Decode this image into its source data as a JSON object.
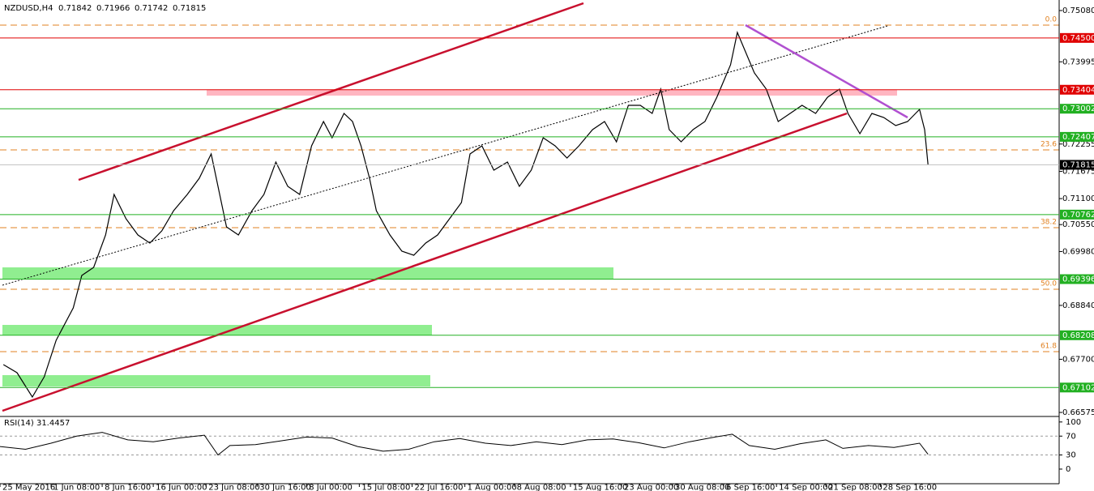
{
  "chart_data": {
    "type": "line",
    "title": "NZDUSD,H4",
    "header_values": [
      0.71842,
      0.71966,
      0.71742,
      0.71815
    ],
    "xlim": [
      0,
      622
    ],
    "xticks": [
      {
        "value": 0,
        "label": "25 May 2016"
      },
      {
        "value": 30,
        "label": "1 Jun 08:00"
      },
      {
        "value": 60,
        "label": "8 Jun 16:00"
      },
      {
        "value": 90,
        "label": "16 Jun 00:00"
      },
      {
        "value": 121,
        "label": "23 Jun 08:00"
      },
      {
        "value": 151,
        "label": "30 Jun 16:00"
      },
      {
        "value": 180,
        "label": "8 Jul 00:00"
      },
      {
        "value": 211,
        "label": "15 Jul 08:00"
      },
      {
        "value": 242,
        "label": "22 Jul 16:00"
      },
      {
        "value": 273,
        "label": "1 Aug 00:00"
      },
      {
        "value": 302,
        "label": "8 Aug 08:00"
      },
      {
        "value": 335,
        "label": "15 Aug 16:00"
      },
      {
        "value": 365,
        "label": "23 Aug 00:00"
      },
      {
        "value": 395,
        "label": "30 Aug 08:00"
      },
      {
        "value": 425,
        "label": "6 Sep 16:00"
      },
      {
        "value": 456,
        "label": "14 Sep 00:00"
      },
      {
        "value": 485,
        "label": "21 Sep 08:00"
      },
      {
        "value": 517,
        "label": "28 Sep 16:00"
      }
    ],
    "ylim": [
      0.66524,
      0.75303
    ],
    "yticks": [
      {
        "value": 0.7508,
        "label": "0.75080"
      },
      {
        "value": 0.73995,
        "label": "0.73995"
      },
      {
        "value": 0.72255,
        "label": "0.72255"
      },
      {
        "value": 0.71675,
        "label": "0.71675"
      },
      {
        "value": 0.711,
        "label": "0.71100"
      },
      {
        "value": 0.7055,
        "label": "0.70550"
      },
      {
        "value": 0.6998,
        "label": "0.69980"
      },
      {
        "value": 0.6884,
        "label": "0.68840"
      },
      {
        "value": 0.677,
        "label": "0.67700"
      },
      {
        "value": 0.66575,
        "label": "0.66575"
      }
    ],
    "levels": [
      {
        "value": 0.745,
        "label": "0.74500",
        "color": "#e00000"
      },
      {
        "value": 0.73404,
        "label": "0.73404",
        "color": "#e00000"
      },
      {
        "value": 0.73002,
        "label": "0.73002",
        "color": "#22b022"
      },
      {
        "value": 0.72407,
        "label": "0.72407",
        "color": "#22b022"
      },
      {
        "value": 0.71815,
        "label": "0.71815",
        "color": "#000000"
      },
      {
        "value": 0.70762,
        "label": "0.70762",
        "color": "#22b022"
      },
      {
        "value": 0.69396,
        "label": "0.69396",
        "color": "#22b022"
      },
      {
        "value": 0.68208,
        "label": "0.68208",
        "color": "#22b022"
      },
      {
        "value": 0.67102,
        "label": "0.67102",
        "color": "#22b022"
      }
    ],
    "fib": [
      {
        "value": 0.74771,
        "label": "0.0"
      },
      {
        "value": 0.72131,
        "label": "23.6"
      },
      {
        "value": 0.70485,
        "label": "38.2"
      },
      {
        "value": 0.69182,
        "label": "50.0"
      },
      {
        "value": 0.67861,
        "label": "61.8"
      }
    ],
    "fib_color": "#e08020",
    "series": [
      {
        "color": "#000000",
        "x": [
          2,
          10,
          19,
          26,
          33,
          43,
          48,
          55,
          62,
          67,
          74,
          81,
          88,
          95,
          102,
          110,
          117,
          124,
          128,
          133,
          140,
          148,
          155,
          162,
          169,
          176,
          183,
          190,
          195,
          202,
          207,
          212,
          217,
          221,
          229,
          236,
          243,
          250,
          257,
          264,
          271,
          276,
          283,
          290,
          298,
          305,
          312,
          319,
          326,
          333,
          340,
          348,
          355,
          362,
          369,
          376,
          383,
          388,
          393,
          400,
          407,
          414,
          421,
          429,
          433,
          437,
          443,
          450,
          457,
          464,
          471,
          479,
          486,
          493,
          498,
          505,
          512,
          519,
          526,
          533,
          540,
          543,
          545
        ],
        "values": [
          0.67587,
          0.67415,
          0.66901,
          0.6733,
          0.68101,
          0.68787,
          0.69473,
          0.69645,
          0.7033,
          0.71188,
          0.70673,
          0.7033,
          0.70159,
          0.70416,
          0.70845,
          0.71188,
          0.71531,
          0.72045,
          0.71359,
          0.70502,
          0.7033,
          0.70845,
          0.71188,
          0.71874,
          0.71359,
          0.71188,
          0.72216,
          0.72731,
          0.72388,
          0.72902,
          0.72731,
          0.72216,
          0.71531,
          0.70845,
          0.7033,
          0.69987,
          0.69902,
          0.70159,
          0.7033,
          0.70673,
          0.71016,
          0.72045,
          0.72216,
          0.71702,
          0.71874,
          0.71359,
          0.71702,
          0.72388,
          0.72216,
          0.71959,
          0.72216,
          0.72559,
          0.72731,
          0.72302,
          0.73074,
          0.73074,
          0.72902,
          0.73417,
          0.72559,
          0.72302,
          0.72559,
          0.72731,
          0.73245,
          0.73931,
          0.74617,
          0.74274,
          0.7376,
          0.73417,
          0.72731,
          0.72902,
          0.73074,
          0.72902,
          0.73245,
          0.73417,
          0.72902,
          0.72474,
          0.72902,
          0.72817,
          0.72645,
          0.72731,
          0.72988,
          0.72559,
          0.71815
        ]
      }
    ],
    "rsi": {
      "title": "RSI(14) 31.4457",
      "ylim": [
        -31,
        110
      ],
      "yticks": [
        100,
        70,
        30,
        0
      ],
      "color": "#000000",
      "x": [
        0,
        15,
        30,
        45,
        60,
        75,
        90,
        105,
        120,
        128,
        135,
        150,
        165,
        180,
        195,
        210,
        225,
        240,
        255,
        270,
        285,
        300,
        315,
        330,
        345,
        360,
        375,
        390,
        405,
        420,
        430,
        440,
        455,
        470,
        485,
        495,
        510,
        525,
        540,
        545
      ],
      "values": [
        48,
        42,
        55,
        70,
        78,
        62,
        58,
        66,
        72,
        30,
        50,
        52,
        60,
        68,
        66,
        48,
        38,
        42,
        58,
        65,
        55,
        50,
        58,
        52,
        62,
        64,
        56,
        45,
        58,
        68,
        74,
        50,
        42,
        54,
        62,
        44,
        50,
        46,
        55,
        31.4457
      ]
    }
  }
}
